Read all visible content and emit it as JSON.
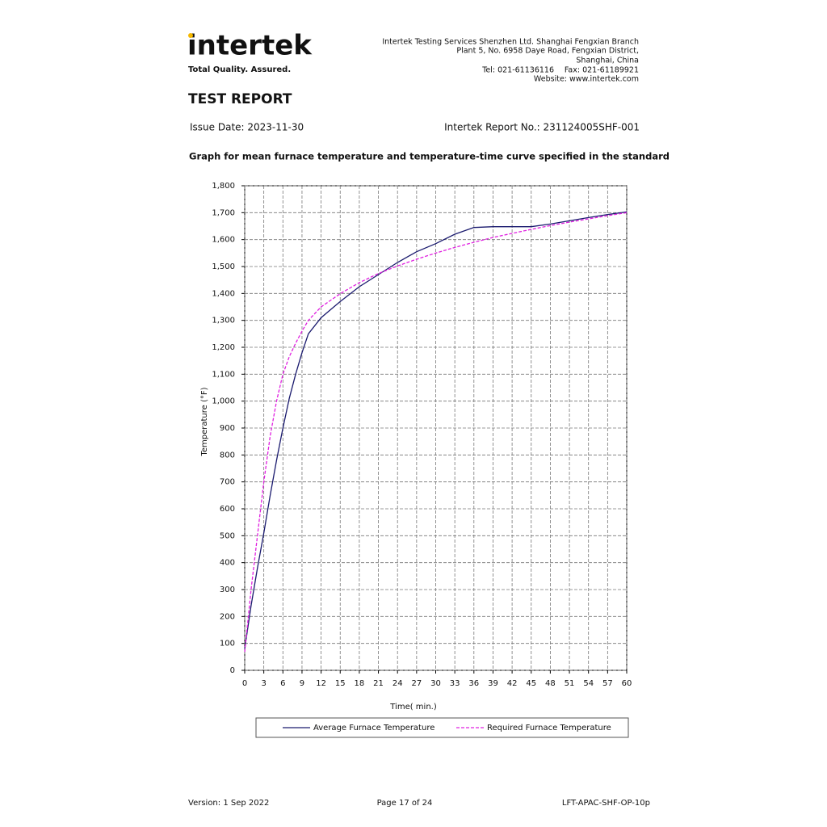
{
  "header": {
    "logo": "intertek",
    "tagline": "Total Quality. Assured.",
    "address": [
      "Intertek Testing Services Shenzhen Ltd. Shanghai Fengxian Branch",
      "Plant 5, No. 6958 Daye Road, Fengxian District,",
      "Shanghai, China"
    ],
    "tel": "Tel: 021-61136116",
    "fax": "Fax: 021-61189921",
    "website": "Website: www.intertek.com"
  },
  "title": "TEST REPORT",
  "issue_date": "Issue Date: 2023-11-30",
  "report_no": "Intertek Report No.: 231124005SHF-001",
  "graph_title": "Graph for mean furnace temperature and temperature-time curve specified in the standard",
  "chart_data": {
    "type": "line",
    "xlabel": "Time( min.)",
    "ylabel": "Temperature (°F)",
    "x": [
      0,
      1,
      2,
      3,
      4,
      5,
      6,
      7,
      8,
      9,
      10,
      12,
      15,
      18,
      21,
      24,
      27,
      30,
      33,
      36,
      39,
      42,
      45,
      48,
      51,
      54,
      57,
      60
    ],
    "series": [
      {
        "name": "Average Furnace Temperature",
        "color": "#1a1a6e",
        "dash": false,
        "values": [
          80,
          240,
          380,
          510,
          650,
          780,
          900,
          1010,
          1100,
          1180,
          1250,
          1310,
          1370,
          1425,
          1470,
          1515,
          1555,
          1585,
          1620,
          1645,
          1648,
          1648,
          1648,
          1658,
          1670,
          1682,
          1693,
          1703
        ]
      },
      {
        "name": "Required Furnace Temperature",
        "color": "#e020e0",
        "dash": true,
        "values": [
          68,
          300,
          500,
          700,
          870,
          1000,
          1100,
          1165,
          1215,
          1260,
          1300,
          1350,
          1399,
          1440,
          1474,
          1502,
          1527,
          1550,
          1571,
          1590,
          1608,
          1623,
          1638,
          1652,
          1665,
          1677,
          1689,
          1700
        ]
      }
    ],
    "xlim": [
      0,
      60
    ],
    "xticks": [
      0,
      3,
      6,
      9,
      12,
      15,
      18,
      21,
      24,
      27,
      30,
      33,
      36,
      39,
      42,
      45,
      48,
      51,
      54,
      57,
      60
    ],
    "ylim": [
      0,
      1800
    ],
    "yticks": [
      0,
      100,
      200,
      300,
      400,
      500,
      600,
      700,
      800,
      900,
      {
        "value": 1000,
        "label": "1,000"
      },
      {
        "value": 1100,
        "label": "1,100"
      },
      {
        "value": 1200,
        "label": "1,200"
      },
      {
        "value": 1300,
        "label": "1,300"
      },
      {
        "value": 1400,
        "label": "1,400"
      },
      {
        "value": 1500,
        "label": "1,500"
      },
      {
        "value": 1600,
        "label": "1,600"
      },
      {
        "value": 1700,
        "label": "1,700"
      },
      {
        "value": 1800,
        "label": "1,800"
      }
    ],
    "grid": true,
    "legend": "bottom"
  },
  "footer": {
    "version": "Version: 1 Sep 2022",
    "page": "Page 17 of 24",
    "code": "LFT-APAC-SHF-OP-10p"
  }
}
